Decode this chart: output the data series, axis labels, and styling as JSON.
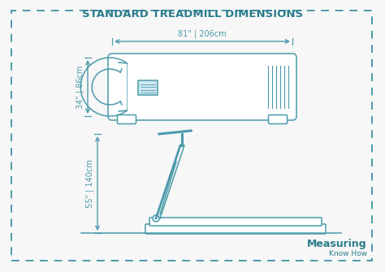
{
  "title": "STANDARD TREADMILL DIMENSIONS",
  "title_color": "#2a7d8c",
  "background_color": "#f7f7f7",
  "treadmill_color": "#4a9aaa",
  "border_color": "#4a9aaa",
  "width_label": "81\" | 206cm",
  "height_top_label": "34\" | 86cm",
  "height_side_label": "55\" | 140cm",
  "brand_main": "Measuring",
  "brand_sub": "Know How",
  "brand_color": "#2a7d8c"
}
